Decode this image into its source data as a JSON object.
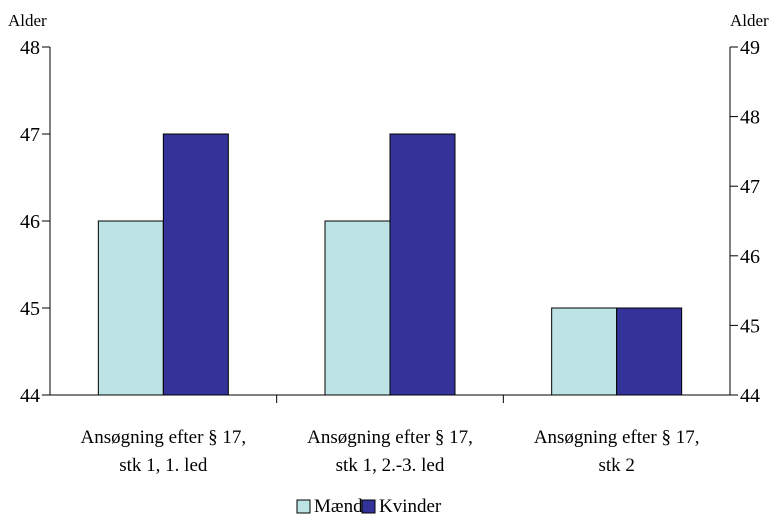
{
  "chart_data": {
    "type": "bar",
    "categories": [
      [
        "Ansøgning efter  § 17,",
        "stk 1, 1. led"
      ],
      [
        "Ansøgning efter § 17,",
        "stk 1, 2.-3. led"
      ],
      [
        "Ansøgning efter § 17,",
        "stk 2"
      ]
    ],
    "series": [
      {
        "name": "Mænd",
        "color": "#bde3e5",
        "values": [
          46,
          46,
          45
        ]
      },
      {
        "name": "Kvinder",
        "color": "#333399",
        "values": [
          47,
          47,
          45
        ]
      }
    ],
    "ylabel_left": "Alder",
    "ylabel_right": "Alder",
    "ylim_left": [
      44,
      48
    ],
    "ylim_right": [
      44,
      49
    ],
    "yticks_left": [
      "44",
      "45",
      "46",
      "47",
      "48"
    ],
    "yticks_right": [
      "44",
      "45",
      "46",
      "47",
      "48",
      "49"
    ],
    "grid": false,
    "legend_position": "bottom"
  }
}
